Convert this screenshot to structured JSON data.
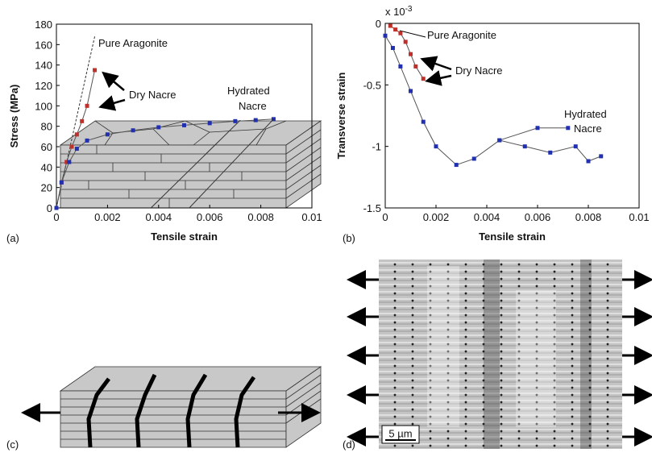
{
  "chart_data": [
    {
      "type": "line",
      "xlabel": "Tensile strain",
      "ylabel": "Stress (MPa)",
      "xlim": [
        0,
        0.01
      ],
      "xticks": [
        0,
        0.002,
        0.004,
        0.006,
        0.008,
        0.01
      ],
      "ylim": [
        0,
        180
      ],
      "yticks": [
        0,
        20,
        40,
        60,
        80,
        100,
        120,
        140,
        160,
        180
      ],
      "series": [
        {
          "color": "#333333",
          "dashed": true,
          "markers": false,
          "x": [
            0,
            0.0015
          ],
          "values": [
            0,
            168
          ]
        },
        {
          "color": "#c0302a",
          "markers": true,
          "x": [
            0,
            0.0002,
            0.0004,
            0.0006,
            0.0008,
            0.001,
            0.0012,
            0.0015
          ],
          "values": [
            0,
            25,
            45,
            60,
            72,
            85,
            100,
            135
          ]
        },
        {
          "color": "#2030b0",
          "markers": true,
          "x": [
            0,
            0.0002,
            0.0005,
            0.0008,
            0.0012,
            0.002,
            0.003,
            0.004,
            0.005,
            0.006,
            0.007,
            0.0078,
            0.0085
          ],
          "values": [
            0,
            25,
            45,
            58,
            66,
            72,
            76,
            79,
            81,
            83,
            85,
            86,
            87
          ]
        },
        {
          "color": "#333333",
          "markers": false,
          "x": [
            0.0037,
            0.0072
          ],
          "values": [
            0,
            86
          ]
        },
        {
          "color": "#333333",
          "markers": false,
          "x": [
            0.0052,
            0.0085
          ],
          "values": [
            0,
            87
          ]
        }
      ],
      "annotations": [
        [
          "Pure Aragonite"
        ],
        [
          "Dry Nacre"
        ],
        [
          "Hydrated",
          "Nacre"
        ]
      ],
      "panel_label": "(a)"
    },
    {
      "type": "line",
      "xlabel": "Tensile strain",
      "ylabel": "Transverse strain",
      "y_multiplier": {
        "base": "x 10",
        "exponent": "-3"
      },
      "xlim": [
        0,
        0.01
      ],
      "xticks": [
        0,
        0.002,
        0.004,
        0.006,
        0.008,
        0.01
      ],
      "ylim": [
        -1.5,
        0
      ],
      "yticks": [
        0,
        -0.5,
        -1,
        -1.5
      ],
      "series": [
        {
          "color": "#c0302a",
          "markers": true,
          "x": [
            0.0002,
            0.0004,
            0.0006,
            0.0008,
            0.001,
            0.0012,
            0.0015
          ],
          "values": [
            -0.02,
            -0.05,
            -0.08,
            -0.15,
            -0.25,
            -0.35,
            -0.45
          ]
        },
        {
          "color": "#2030b0",
          "markers": true,
          "x": [
            0,
            0.0003,
            0.0006,
            0.001,
            0.0015,
            0.002,
            0.0028,
            0.0035,
            0.0045,
            0.006,
            0.0072
          ],
          "values": [
            -0.1,
            -0.2,
            -0.35,
            -0.55,
            -0.8,
            -1.0,
            -1.15,
            -1.1,
            -0.95,
            -0.85,
            -0.85
          ]
        },
        {
          "color": "#2030b0",
          "markers": true,
          "x": [
            0.0045,
            0.0055,
            0.0065,
            0.0075,
            0.008,
            0.0085
          ],
          "values": [
            -0.95,
            -1.0,
            -1.05,
            -1.0,
            -1.12,
            -1.08
          ]
        }
      ],
      "annotations": [
        [
          "Pure Aragonite"
        ],
        [
          "Dry Nacre"
        ],
        [
          "Hydrated",
          "Nacre"
        ]
      ],
      "panel_label": "(b)"
    }
  ],
  "panel_c": {
    "label": "(c)"
  },
  "panel_d": {
    "label": "(d)",
    "scale_bar": "5 µm"
  }
}
